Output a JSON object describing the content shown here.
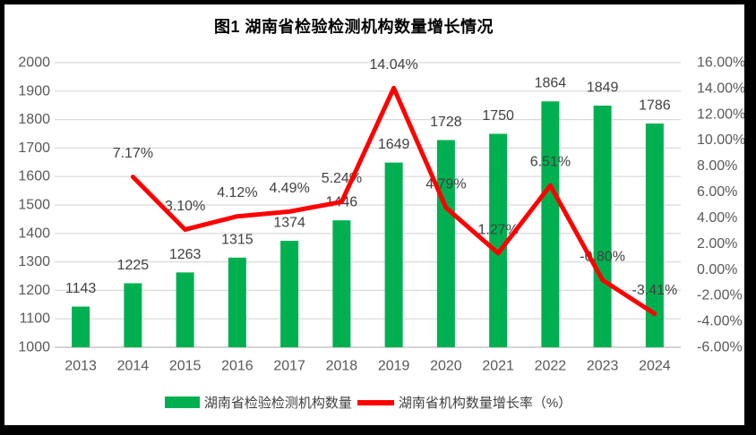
{
  "chart_data": {
    "type": "bar+line",
    "title": "图1 湖南省检验检测机构数量增长情况",
    "categories": [
      "2013",
      "2014",
      "2015",
      "2016",
      "2017",
      "2018",
      "2019",
      "2020",
      "2021",
      "2022",
      "2023",
      "2024"
    ],
    "series": [
      {
        "name": "湖南省检验检测机构数量",
        "type": "bar",
        "axis": "left",
        "color": "#00B050",
        "values": [
          1143,
          1225,
          1263,
          1315,
          1374,
          1446,
          1649,
          1728,
          1750,
          1864,
          1849,
          1786
        ],
        "labels": [
          "1143",
          "1225",
          "1263",
          "1315",
          "1374",
          "1446",
          "1649",
          "1728",
          "1750",
          "1864",
          "1849",
          "1786"
        ]
      },
      {
        "name": "湖南省机构数量增长率（%）",
        "type": "line",
        "axis": "right",
        "color": "#FF0000",
        "values": [
          null,
          7.17,
          3.1,
          4.12,
          4.49,
          5.24,
          14.04,
          4.79,
          1.27,
          6.51,
          -0.8,
          -3.41
        ],
        "labels": [
          "",
          "7.17%",
          "3.10%",
          "4.12%",
          "4.49%",
          "5.24%",
          "14.04%",
          "4.79%",
          "1.27%",
          "6.51%",
          "-0.80%",
          "-3.41%"
        ]
      }
    ],
    "left_axis": {
      "min": 1000,
      "max": 2000,
      "step": 100,
      "tick_labels": [
        "2000",
        "1900",
        "1800",
        "1700",
        "1600",
        "1500",
        "1400",
        "1300",
        "1200",
        "1100",
        "1000"
      ]
    },
    "right_axis": {
      "min": -6,
      "max": 16,
      "step": 2,
      "tick_labels": [
        "16.00%",
        "14.00%",
        "12.00%",
        "10.00%",
        "8.00%",
        "6.00%",
        "4.00%",
        "2.00%",
        "0.00%",
        "-2.00%",
        "-4.00%",
        "-6.00%"
      ]
    },
    "grid": true,
    "legend_position": "bottom",
    "colors": {
      "grid": "#D9D9D9",
      "axis_line": "#C6C6C6",
      "axis_text": "#595959",
      "data_label": "#404040",
      "background": "#FFFFFF",
      "frame": "#000000"
    }
  }
}
